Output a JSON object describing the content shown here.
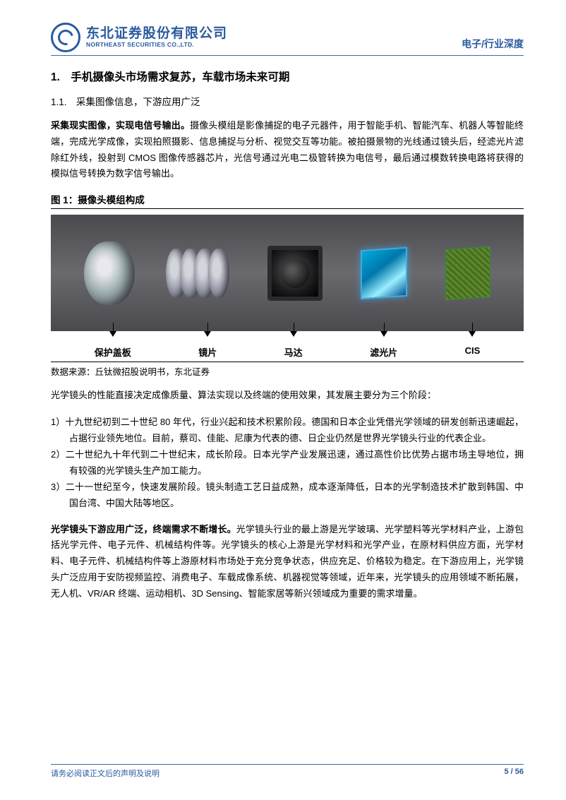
{
  "header": {
    "company_cn": "东北证券股份有限公司",
    "company_en": "NORTHEAST SECURITIES CO.,LTD.",
    "category": "电子/行业深度"
  },
  "section1": {
    "num_title": "1.　手机摄像头市场需求复苏，车载市场未来可期"
  },
  "section1_1": {
    "num_title": "1.1.　采集图像信息，下游应用广泛"
  },
  "para1": {
    "bold": "采集现实图像，实现电信号输出。",
    "text": "摄像头模组是影像捕捉的电子元器件，用于智能手机、智能汽车、机器人等智能终端，完成光学成像，实现拍照摄影、信息捕捉与分析、视觉交互等功能。被拍摄景物的光线通过镜头后，经滤光片滤除红外线，投射到 CMOS 图像传感器芯片，光信号通过光电二极管转换为电信号，最后通过模数转换电路将获得的模拟信号转换为数字信号输出。"
  },
  "figure1": {
    "title": "图 1：摄像头模组构成",
    "labels": [
      "保护盖板",
      "镜片",
      "马达",
      "滤光片",
      "CIS"
    ],
    "source": "数据来源：丘钛微招股说明书，东北证券"
  },
  "para2": "光学镜头的性能直接决定成像质量、算法实现以及终端的使用效果，其发展主要分为三个阶段：",
  "list": {
    "item1": "1）十九世纪初到二十世纪 80 年代，行业兴起和技术积累阶段。德国和日本企业凭借光学领域的研发创新迅速崛起，占据行业领先地位。目前，蔡司、佳能、尼康为代表的德、日企业仍然是世界光学镜头行业的代表企业。",
    "item2": "2）二十世纪九十年代到二十世纪末，成长阶段。日本光学产业发展迅速，通过高性价比优势占据市场主导地位，拥有较强的光学镜头生产加工能力。",
    "item3": "3）二十一世纪至今，快速发展阶段。镜头制造工艺日益成熟，成本逐渐降低，日本的光学制造技术扩散到韩国、中国台湾、中国大陆等地区。"
  },
  "para3": {
    "bold": "光学镜头下游应用广泛，终端需求不断增长。",
    "text": "光学镜头行业的最上游是光学玻璃、光学塑料等光学材料产业，上游包括光学元件、电子元件、机械结构件等。光学镜头的核心上游是光学材料和光学产业，在原材料供应方面，光学材料、电子元件、机械结构件等上游原材料市场处于充分竞争状态，供应充足、价格较为稳定。在下游应用上，光学镜头广泛应用于安防视频监控、消费电子、车载成像系统、机器视觉等领域，近年来，光学镜头的应用领域不断拓展，无人机、VR/AR 终端、运动相机、3D Sensing、智能家居等新兴领域成为重要的需求增量。"
  },
  "footer": {
    "disclaimer": "请务必阅读正文后的声明及说明",
    "page": "5 / 56"
  },
  "colors": {
    "brand_blue": "#2a5aa0",
    "rule_blue": "#3a6bb0",
    "text": "#000000"
  }
}
